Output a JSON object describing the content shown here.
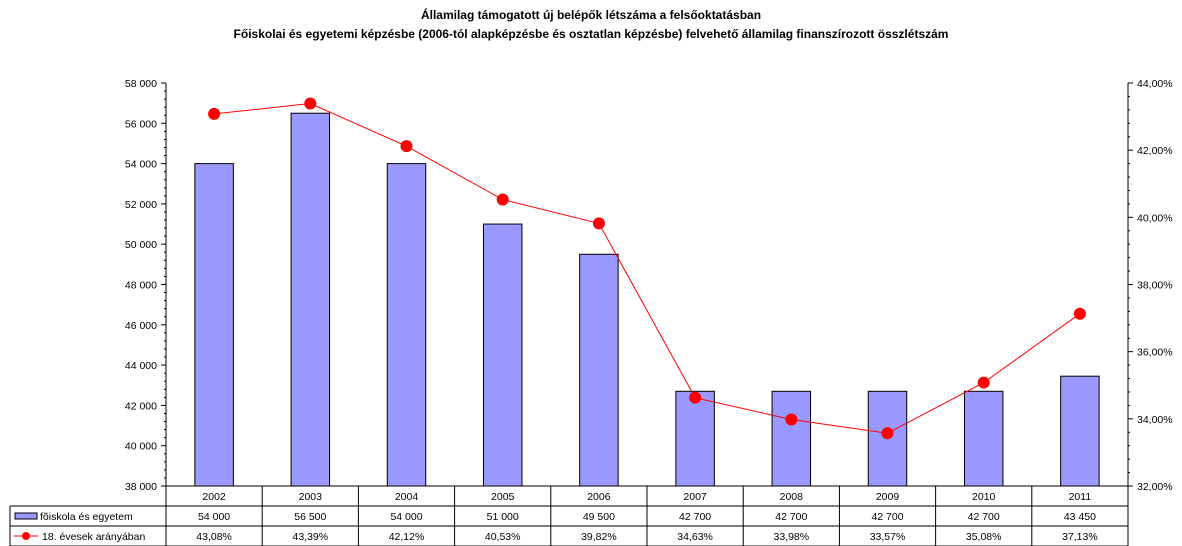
{
  "chart_data": {
    "type": "bar",
    "title": "Államilag támogatott új belépők létszáma a felsőoktatásban",
    "subtitle": "Főiskolai és egyetemi képzésbe (2006-tól alapképzésbe és osztatlan képzésbe) felvehető államilag finanszírozott összlétszám",
    "categories": [
      "2002",
      "2003",
      "2004",
      "2005",
      "2006",
      "2007",
      "2008",
      "2009",
      "2010",
      "2011"
    ],
    "series": [
      {
        "name": "fõiskola és egyetem",
        "type": "bar",
        "axis": "left",
        "color": "#9999ff",
        "values": [
          54000,
          56500,
          54000,
          51000,
          49500,
          42700,
          42700,
          42700,
          42700,
          43450
        ],
        "labels": [
          "54 000",
          "56 500",
          "54 000",
          "51 000",
          "49 500",
          "42 700",
          "42 700",
          "42 700",
          "42 700",
          "43 450"
        ]
      },
      {
        "name": "18. évesek arányában",
        "type": "line",
        "axis": "right",
        "color": "#ff0000",
        "values": [
          43.08,
          43.39,
          42.12,
          40.53,
          39.82,
          34.63,
          33.98,
          33.57,
          35.08,
          37.13
        ],
        "labels": [
          "43,08%",
          "43,39%",
          "42,12%",
          "40,53%",
          "39,82%",
          "34,63%",
          "33,98%",
          "33,57%",
          "35,08%",
          "37,13%"
        ]
      }
    ],
    "y_left": {
      "ylim": [
        38000,
        58000
      ],
      "ticks": [
        38000,
        40000,
        42000,
        44000,
        46000,
        48000,
        50000,
        52000,
        54000,
        56000,
        58000
      ],
      "tick_labels": [
        "38 000",
        "40 000",
        "42 000",
        "44 000",
        "46 000",
        "48 000",
        "50 000",
        "52 000",
        "54 000",
        "56 000",
        "58 000"
      ]
    },
    "y_right": {
      "ylim": [
        32,
        44
      ],
      "ticks": [
        32,
        34,
        36,
        38,
        40,
        42,
        44
      ],
      "tick_labels": [
        "32,00%",
        "34,00%",
        "36,00%",
        "38,00%",
        "40,00%",
        "42,00%",
        "44,00%"
      ]
    },
    "grid": false,
    "legend": "data-table"
  }
}
